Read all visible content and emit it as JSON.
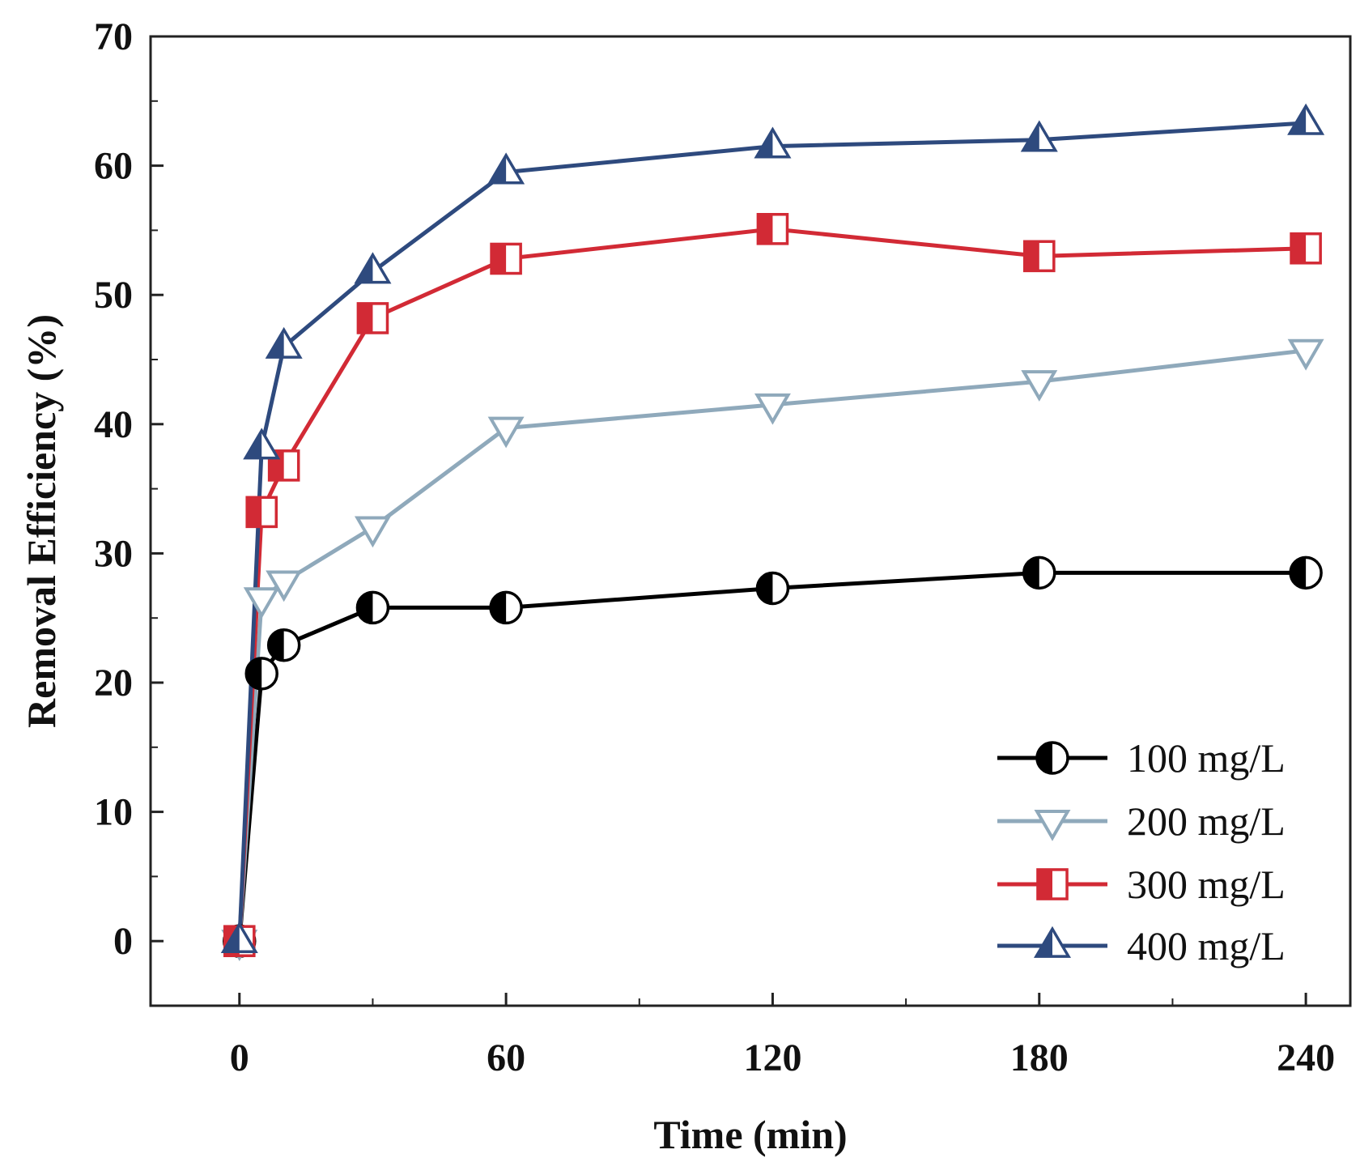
{
  "chart_data": {
    "type": "line",
    "title": "",
    "xlabel": "Time (min)",
    "ylabel": "Removal Efficiency (%)",
    "xlim": [
      -20,
      250
    ],
    "ylim": [
      -5,
      70
    ],
    "xticks": [
      0,
      60,
      120,
      180,
      240
    ],
    "xtick_labels": [
      "0",
      "60",
      "120",
      "180",
      "240"
    ],
    "yticks": [
      0,
      10,
      20,
      30,
      40,
      50,
      60,
      70
    ],
    "ytick_labels": [
      "0",
      "10",
      "20",
      "30",
      "40",
      "50",
      "60",
      "70"
    ],
    "legend_position": "bottom-right",
    "series": [
      {
        "name": "100 mg/L",
        "color": "#000000",
        "marker": "circle-half",
        "x": [
          0,
          5,
          10,
          30,
          60,
          120,
          180,
          240
        ],
        "y": [
          0,
          20.7,
          22.9,
          25.8,
          25.8,
          27.3,
          28.5,
          28.5
        ]
      },
      {
        "name": "200 mg/L",
        "color": "#8fa9bb",
        "marker": "triangle-down",
        "x": [
          0,
          5,
          10,
          30,
          60,
          120,
          180,
          240
        ],
        "y": [
          0,
          26.5,
          27.8,
          32.0,
          39.7,
          41.5,
          43.3,
          45.7
        ]
      },
      {
        "name": "300 mg/L",
        "color": "#d22a35",
        "marker": "square-half",
        "x": [
          0,
          5,
          10,
          30,
          60,
          120,
          180,
          240
        ],
        "y": [
          0,
          33.2,
          36.8,
          48.2,
          52.8,
          55.1,
          53.0,
          53.6
        ]
      },
      {
        "name": "400 mg/L",
        "color": "#2e4a7e",
        "marker": "triangle-up-half",
        "x": [
          0,
          5,
          10,
          30,
          60,
          120,
          180,
          240
        ],
        "y": [
          0,
          38.2,
          46.0,
          51.8,
          59.5,
          61.5,
          62.0,
          63.3
        ]
      }
    ]
  }
}
